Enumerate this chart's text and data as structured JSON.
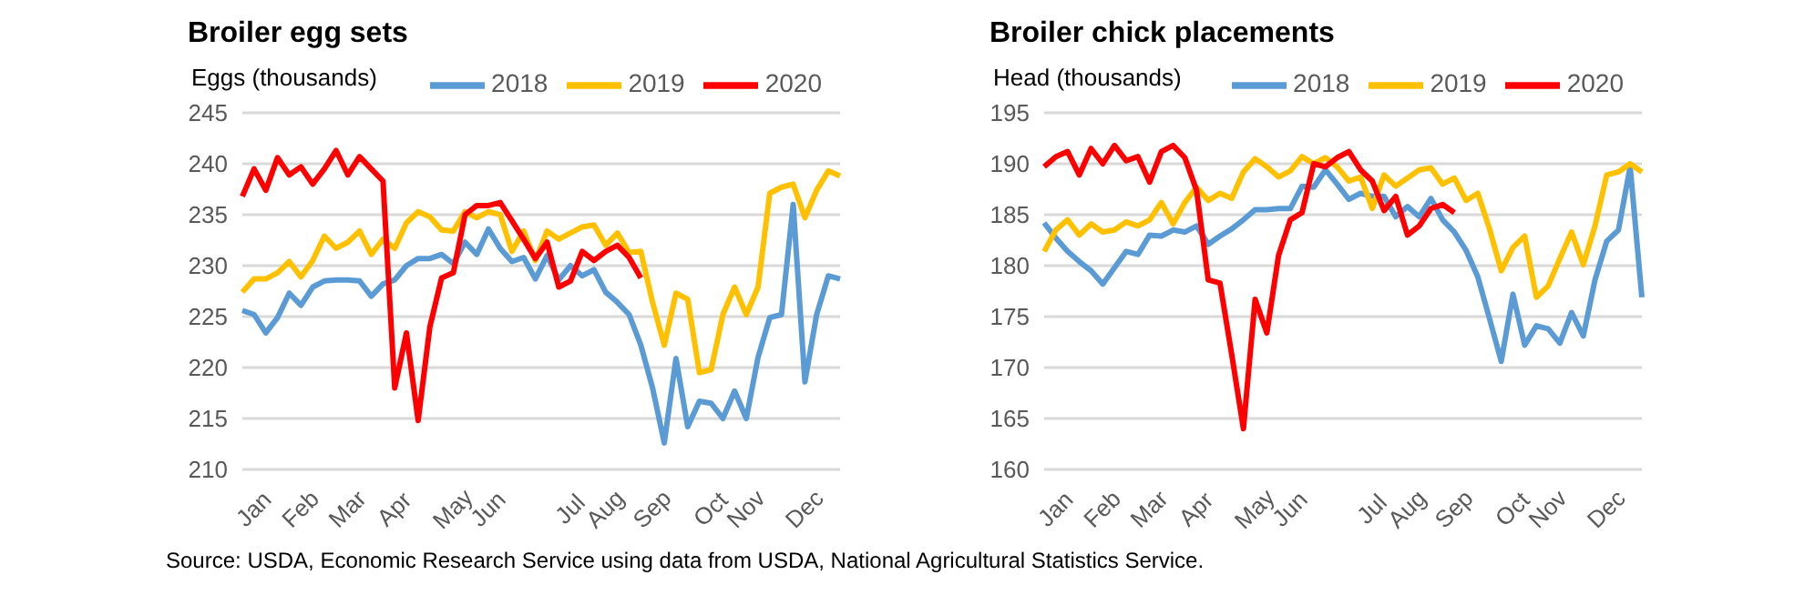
{
  "chart_data": [
    {
      "type": "line",
      "title": "Broiler egg sets",
      "ylabel": "Eggs (thousands)",
      "categories": [
        null,
        "Jan",
        null,
        null,
        null,
        "Feb",
        null,
        null,
        null,
        "Mar",
        null,
        null,
        null,
        "Apr",
        null,
        null,
        null,
        null,
        "May",
        null,
        null,
        "Jun",
        null,
        null,
        null,
        null,
        null,
        null,
        "Jul",
        null,
        null,
        "Aug",
        null,
        null,
        null,
        "Sep",
        null,
        null,
        null,
        null,
        "Oct",
        null,
        null,
        "Nov",
        null,
        null,
        null,
        null,
        "Dec",
        null,
        null,
        null
      ],
      "series": [
        {
          "name": "2018",
          "color": "#5b9bd5",
          "values": [
            225.6,
            225.2,
            223.4,
            224.9,
            227.3,
            226.1,
            227.9,
            228.5,
            228.6,
            228.6,
            228.5,
            227,
            228.2,
            228.6,
            230,
            230.7,
            230.7,
            231.1,
            230.2,
            232.3,
            231.1,
            233.6,
            231.7,
            230.4,
            230.8,
            228.7,
            231,
            228.6,
            230,
            229,
            229.6,
            227.4,
            226.4,
            225.2,
            222.2,
            218,
            212.6,
            220.9,
            214.2,
            216.7,
            216.5,
            215,
            217.7,
            215,
            221,
            224.9,
            225.2,
            236,
            218.6,
            225.2,
            229,
            228.7
          ]
        },
        {
          "name": "2019",
          "color": "#ffc000",
          "values": [
            227.4,
            228.7,
            228.7,
            229.3,
            230.4,
            228.9,
            230.5,
            232.9,
            231.7,
            232.3,
            233.4,
            231.1,
            232.6,
            231.7,
            234.2,
            235.3,
            234.8,
            233.5,
            233.4,
            235.3,
            234.7,
            235.3,
            235,
            231.4,
            233.4,
            230.5,
            233.4,
            232.6,
            233.2,
            233.8,
            234,
            232,
            233.2,
            231.3,
            231.4,
            226.4,
            222.2,
            227.3,
            226.7,
            219.5,
            219.8,
            225.2,
            227.9,
            225.2,
            227.9,
            237.1,
            237.7,
            238,
            234.7,
            237.4,
            239.3,
            238.8
          ]
        },
        {
          "name": "2020",
          "color": "#ff0000",
          "values": [
            236.8,
            239.5,
            237.4,
            240.6,
            238.9,
            239.7,
            238,
            239.5,
            241.3,
            238.9,
            240.7,
            239.5,
            238.3,
            218,
            223.4,
            214.8,
            224,
            228.8,
            229.3,
            235,
            235.9,
            235.9,
            236.2,
            234.4,
            232.6,
            230.7,
            232.3,
            227.9,
            228.5,
            231.4,
            230.5,
            231.4,
            232,
            230.8,
            228.8,
            null,
            null,
            null,
            null,
            null,
            null,
            null,
            null,
            null,
            null,
            null,
            null,
            null,
            null,
            null,
            null,
            null
          ]
        }
      ],
      "ylim": [
        210,
        245
      ],
      "yticks": [
        210,
        215,
        220,
        225,
        230,
        235,
        240,
        245
      ],
      "grid": "y",
      "legend": "top right",
      "marker": "none",
      "line_style": "solid",
      "annotations": [
        "Source: USDA, Economic Research Service using data from USDA, National Agricultural Statistics Service."
      ]
    },
    {
      "type": "line",
      "title": "Broiler chick placements",
      "ylabel": "Head (thousands)",
      "categories": [
        null,
        "Jan",
        null,
        null,
        null,
        "Feb",
        null,
        null,
        null,
        "Mar",
        null,
        null,
        null,
        "Apr",
        null,
        null,
        null,
        null,
        "May",
        null,
        null,
        "Jun",
        null,
        null,
        null,
        null,
        null,
        null,
        "Jul",
        null,
        null,
        "Aug",
        null,
        null,
        null,
        "Sep",
        null,
        null,
        null,
        null,
        "Oct",
        null,
        null,
        "Nov",
        null,
        null,
        null,
        null,
        "Dec",
        null,
        null,
        null
      ],
      "series": [
        {
          "name": "2018",
          "color": "#5b9bd5",
          "values": [
            184.2,
            182.7,
            181.4,
            180.4,
            179.5,
            178.2,
            179.8,
            181.4,
            181.1,
            183,
            182.9,
            183.5,
            183.3,
            183.9,
            182.1,
            182.9,
            183.6,
            184.5,
            185.5,
            185.5,
            185.6,
            185.6,
            187.8,
            187.7,
            189.4,
            188,
            186.5,
            187.1,
            186.8,
            186.8,
            184.8,
            185.8,
            184.8,
            186.6,
            184.5,
            183.3,
            181.5,
            178.9,
            174.8,
            170.6,
            177.2,
            172.2,
            174.1,
            173.8,
            172.4,
            175.4,
            173.1,
            178.6,
            182.4,
            183.5,
            189.7,
            176.9
          ]
        },
        {
          "name": "2019",
          "color": "#ffc000",
          "values": [
            181.4,
            183.5,
            184.5,
            183,
            184.1,
            183.3,
            183.5,
            184.3,
            183.9,
            184.5,
            186.2,
            184.1,
            186.2,
            187.7,
            186.4,
            187.1,
            186.6,
            189.2,
            190.5,
            189.7,
            188.7,
            189.3,
            190.7,
            190,
            190.6,
            189.7,
            188.3,
            188.7,
            185.6,
            188.9,
            187.8,
            188.6,
            189.4,
            189.6,
            188,
            188.6,
            186.4,
            187.1,
            183.6,
            179.5,
            181.8,
            182.9,
            176.9,
            178,
            180.7,
            183.3,
            180.1,
            183.9,
            188.9,
            189.2,
            190,
            189.2
          ]
        },
        {
          "name": "2020",
          "color": "#ff0000",
          "values": [
            189.7,
            190.7,
            191.2,
            188.9,
            191.5,
            190,
            191.8,
            190.3,
            190.7,
            188.2,
            191.2,
            191.8,
            190.6,
            187.4,
            178.6,
            178.3,
            171.3,
            164,
            176.7,
            173.4,
            181,
            184.5,
            185.2,
            190,
            189.7,
            190.6,
            191.2,
            189.4,
            188.3,
            185.4,
            186.8,
            183,
            183.9,
            185.6,
            186,
            185.2,
            null,
            null,
            null,
            null,
            null,
            null,
            null,
            null,
            null,
            null,
            null,
            null,
            null,
            null,
            null,
            null
          ]
        }
      ],
      "ylim": [
        160,
        195
      ],
      "yticks": [
        160,
        165,
        170,
        175,
        180,
        185,
        190,
        195
      ],
      "grid": "y",
      "legend": "top right",
      "marker": "none",
      "line_style": "solid"
    }
  ]
}
